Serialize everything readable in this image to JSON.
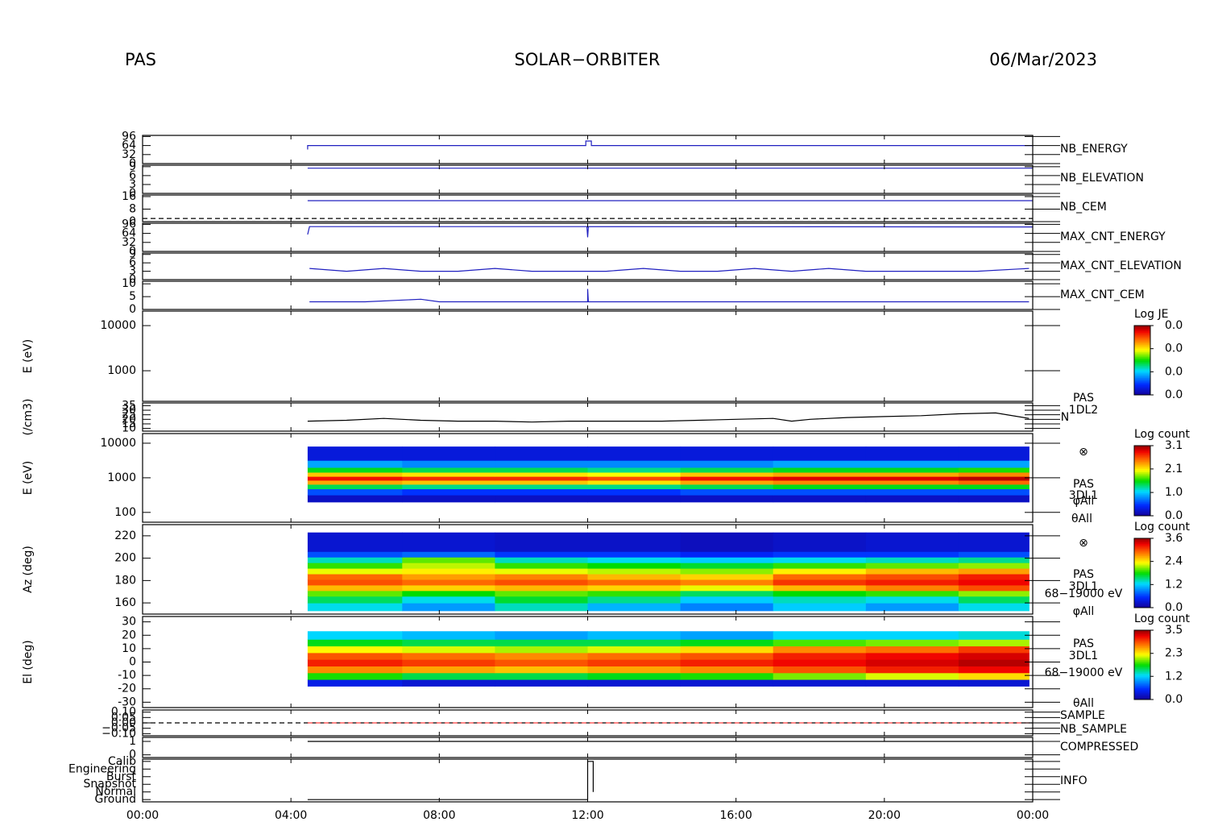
{
  "header": {
    "left": "PAS",
    "center": "SOLAR−ORBITER",
    "right": "06/Mar/2023"
  },
  "chart_data": [
    {
      "type": "line",
      "label": "NB_ENERGY",
      "label_color": "#2020b0",
      "ylim": [
        0,
        100
      ],
      "yticks": [
        0,
        32,
        64,
        96
      ],
      "series": [
        {
          "color": "#2020c0",
          "x": [
            4.45,
            4.45,
            11.95,
            11.95,
            12.1,
            12.1,
            24
          ],
          "values": [
            50,
            64,
            64,
            80,
            80,
            64,
            64
          ]
        }
      ]
    },
    {
      "type": "line",
      "label": "NB_ELEVATION",
      "label_color": "#2020b0",
      "ylim": [
        0,
        9.5
      ],
      "yticks": [
        0,
        3,
        6,
        9
      ],
      "series": [
        {
          "color": "#2020c0",
          "x": [
            4.45,
            24
          ],
          "values": [
            8.5,
            8.5
          ]
        }
      ]
    },
    {
      "type": "line",
      "label": "NB_CEM",
      "label_color": "#2020b0",
      "ylim": [
        0,
        17
      ],
      "yticks": [
        0,
        8,
        16
      ],
      "series": [
        {
          "color": "#2020c0",
          "x": [
            4.45,
            24
          ],
          "values": [
            13.4,
            13.4
          ]
        },
        {
          "color": "#000000",
          "dash": true,
          "x": [
            0,
            24
          ],
          "values": [
            2,
            2
          ]
        }
      ]
    },
    {
      "type": "line",
      "label": "MAX_CNT_ENERGY",
      "label_color": "#2020b0",
      "ylim": [
        0,
        100
      ],
      "yticks": [
        0,
        32,
        64,
        96
      ],
      "series": [
        {
          "color": "#2020c0",
          "x": [
            4.45,
            4.5,
            11.98,
            12,
            12.02,
            24
          ],
          "values": [
            60,
            88,
            88,
            50,
            88,
            87
          ]
        }
      ]
    },
    {
      "type": "line",
      "label": "MAX_CNT_ELEVATION",
      "label_color": "#2020b0",
      "ylim": [
        0,
        9.5
      ],
      "yticks": [
        0,
        3,
        6,
        9
      ],
      "series": [
        {
          "color": "#2020c0",
          "x": [
            4.5,
            5.5,
            6.5,
            7.5,
            8.5,
            9.5,
            10.5,
            11.5,
            12.5,
            13.5,
            14.5,
            15.5,
            16.5,
            17.5,
            18.5,
            19.5,
            20.5,
            21.5,
            22.5,
            23.9
          ],
          "values": [
            4,
            3,
            4,
            3,
            3,
            4,
            3,
            3,
            3,
            4,
            3,
            3,
            4,
            3,
            4,
            3,
            3,
            3,
            3,
            4
          ]
        }
      ]
    },
    {
      "type": "line",
      "label": "MAX_CNT_CEM",
      "label_color": "#2020b0",
      "ylim": [
        0,
        11
      ],
      "yticks": [
        0,
        5,
        10
      ],
      "series": [
        {
          "color": "#2020c0",
          "x": [
            4.5,
            6,
            7.5,
            8,
            9,
            12,
            12,
            12.02,
            16,
            20,
            23,
            23.9
          ],
          "values": [
            3,
            3,
            4,
            3,
            3,
            3,
            8,
            3,
            3,
            3,
            3,
            3
          ]
        }
      ]
    },
    {
      "type": "heatmap",
      "ylabel": "E (eV)",
      "log": true,
      "ylim": [
        210,
        21000
      ],
      "yticks": [
        1000,
        10000
      ],
      "colorbar": {
        "title": "Log JE",
        "zlim": [
          0,
          0.03
        ],
        "ticks": [
          {
            "value": 0,
            "label": "0.0"
          },
          {
            "value": 0.01,
            "label": "0.0"
          },
          {
            "value": 0.02,
            "label": "0.0"
          },
          {
            "value": 0.03,
            "label": "0.0"
          }
        ]
      }
    },
    {
      "type": "line",
      "ylabel": "(/cm3)",
      "ylim": [
        7,
        38
      ],
      "yticks": [
        10,
        15,
        20,
        25,
        30,
        35
      ],
      "side_labels": [
        "PAS",
        "1DL2",
        "N"
      ],
      "series": [
        {
          "color": "#000000",
          "x": [
            4.45,
            5.5,
            6.5,
            7.5,
            8.5,
            9.5,
            10.5,
            11.5,
            12.1,
            13,
            14,
            15,
            16,
            17,
            17.5,
            18,
            19,
            20,
            21,
            22,
            23,
            23.9
          ],
          "values": [
            18,
            19,
            21,
            19,
            18,
            18,
            17,
            18,
            18,
            18,
            18,
            19,
            20,
            21,
            18,
            20,
            22,
            23,
            24,
            26,
            27,
            21
          ]
        }
      ]
    },
    {
      "type": "heatmap",
      "ylabel": "E (eV)",
      "log": true,
      "ylim": [
        52,
        19000
      ],
      "yticks": [
        100,
        1000,
        10000
      ],
      "side_labels": [
        "⊗",
        "PAS",
        "3DL1",
        "φAll",
        "θAll"
      ],
      "x": [
        4.45,
        7,
        9.5,
        12,
        14.5,
        17,
        19.5,
        22,
        23.9
      ],
      "y": [
        200,
        320,
        480,
        650,
        850,
        1100,
        1450,
        2000,
        3200,
        8000
      ],
      "z": [
        [
          0.2,
          0.2,
          0.2,
          0.2,
          0.2,
          0.2,
          0.2,
          0.2
        ],
        [
          0.6,
          0.5,
          0.5,
          0.5,
          0.6,
          0.6,
          0.6,
          0.6
        ],
        [
          1.4,
          1.3,
          1.3,
          1.3,
          1.4,
          1.5,
          1.5,
          1.5
        ],
        [
          2.3,
          2.2,
          2.2,
          2.1,
          2.3,
          2.4,
          2.4,
          2.5
        ],
        [
          2.8,
          2.7,
          2.7,
          2.6,
          2.8,
          2.9,
          2.9,
          3.0
        ],
        [
          2.2,
          2.1,
          2.1,
          2.0,
          2.2,
          2.3,
          2.3,
          2.4
        ],
        [
          1.5,
          1.4,
          1.4,
          1.3,
          1.4,
          1.5,
          1.5,
          1.6
        ],
        [
          0.9,
          0.8,
          0.8,
          0.8,
          0.8,
          0.9,
          0.9,
          0.9
        ],
        [
          0.3,
          0.3,
          0.3,
          0.3,
          0.3,
          0.3,
          0.3,
          0.3
        ]
      ],
      "colorbar": {
        "title": "Log count",
        "zlim": [
          0,
          3.1
        ],
        "ticks": [
          {
            "value": 0,
            "label": "0.0"
          },
          {
            "value": 1.03,
            "label": "1.0"
          },
          {
            "value": 2.07,
            "label": "2.1"
          },
          3.1
        ]
      }
    },
    {
      "type": "heatmap",
      "ylabel": "Az (deg)",
      "ylim": [
        150,
        230
      ],
      "yticks": [
        160,
        180,
        200,
        220
      ],
      "side_labels": [
        "⊗",
        "PAS",
        "3DL1",
        "68−19000 eV",
        "φAll"
      ],
      "x": [
        4.45,
        7,
        9.5,
        12,
        14.5,
        17,
        19.5,
        22,
        23.9
      ],
      "y": [
        153,
        160,
        166,
        171,
        176,
        181,
        186,
        191,
        196,
        201,
        206,
        223
      ],
      "z": [
        [
          1.3,
          1.0,
          1.4,
          1.1,
          0.9,
          1.2,
          1.0,
          1.3
        ],
        [
          1.6,
          1.3,
          1.7,
          1.5,
          1.2,
          1.4,
          1.3,
          1.6
        ],
        [
          2.0,
          1.8,
          2.0,
          1.9,
          1.6,
          1.8,
          1.9,
          2.1
        ],
        [
          2.6,
          2.5,
          2.6,
          2.5,
          2.3,
          2.6,
          2.8,
          3.0
        ],
        [
          3.0,
          2.9,
          3.0,
          2.9,
          2.8,
          3.1,
          3.2,
          3.3
        ],
        [
          2.9,
          2.7,
          2.8,
          2.6,
          2.5,
          2.9,
          3.0,
          3.2
        ],
        [
          2.3,
          2.4,
          2.3,
          2.2,
          2.1,
          2.4,
          2.6,
          2.7
        ],
        [
          1.9,
          2.2,
          1.9,
          1.8,
          1.7,
          1.9,
          2.0,
          2.1
        ],
        [
          1.4,
          2.0,
          1.4,
          1.3,
          1.2,
          1.3,
          1.4,
          1.5
        ],
        [
          0.7,
          0.8,
          0.6,
          0.6,
          0.5,
          0.6,
          0.6,
          0.7
        ],
        [
          0.3,
          0.3,
          0.25,
          0.25,
          0.2,
          0.25,
          0.3,
          0.3
        ]
      ],
      "colorbar": {
        "title": "Log count",
        "zlim": [
          0,
          3.6
        ],
        "ticks": [
          {
            "value": 0,
            "label": "0.0"
          },
          1.2,
          2.4,
          3.6
        ]
      }
    },
    {
      "type": "heatmap",
      "ylabel": "El (deg)",
      "ylim": [
        -34,
        34
      ],
      "yticks": [
        -30,
        -20,
        -10,
        0,
        10,
        20,
        30
      ],
      "side_labels": [
        "PAS",
        "3DL1",
        "68−19000 eV",
        "θAll"
      ],
      "x": [
        4.45,
        7,
        9.5,
        12,
        14.5,
        17,
        19.5,
        22,
        23.9
      ],
      "y": [
        -18,
        -13,
        -8,
        -3,
        2,
        7,
        12,
        17,
        23
      ],
      "z": [
        [
          0.4,
          0.3,
          0.3,
          0.3,
          0.3,
          0.3,
          0.3,
          0.3
        ],
        [
          1.8,
          1.6,
          1.6,
          1.7,
          1.8,
          2.0,
          2.2,
          2.4
        ],
        [
          2.7,
          2.6,
          2.5,
          2.6,
          2.7,
          2.9,
          3.1,
          3.2
        ],
        [
          3.1,
          3.0,
          2.9,
          3.0,
          3.1,
          3.2,
          3.3,
          3.4
        ],
        [
          2.9,
          2.8,
          2.7,
          2.8,
          2.9,
          3.1,
          3.2,
          3.3
        ],
        [
          2.3,
          2.2,
          2.1,
          2.2,
          2.4,
          2.7,
          2.8,
          3.0
        ],
        [
          1.7,
          1.6,
          1.6,
          1.6,
          1.7,
          1.9,
          2.0,
          2.1
        ],
        [
          1.2,
          1.1,
          1.0,
          1.1,
          1.0,
          1.2,
          1.2,
          1.3
        ]
      ],
      "colorbar": {
        "title": "Log count",
        "zlim": [
          0,
          3.5
        ],
        "ticks": [
          {
            "value": 0,
            "label": "0.0"
          },
          {
            "value": 1.17,
            "label": "1.2"
          },
          {
            "value": 2.33,
            "label": "2.3"
          },
          3.5
        ]
      }
    },
    {
      "type": "line",
      "ylim": [
        -0.12,
        0.12
      ],
      "yticks": [
        {
          "value": -0.1,
          "label": "−0.10"
        },
        {
          "value": -0.05,
          "label": "−0.05"
        },
        {
          "value": 0,
          "label": "0.00"
        },
        {
          "value": 0.05,
          "label": "0.05"
        },
        {
          "value": 0.1,
          "label": "0.10"
        }
      ],
      "series": [
        {
          "name": "SAMPLE",
          "label_color": "#2020b0",
          "color": "#000000",
          "dash": true,
          "x": [
            0,
            24
          ],
          "values": [
            0,
            0
          ]
        },
        {
          "name": "NB_SAMPLE",
          "label_color": "#e02020",
          "color": "#ff4040",
          "dash": true,
          "x": [
            4.45,
            24
          ],
          "values": [
            0,
            0
          ]
        }
      ]
    },
    {
      "type": "line",
      "label": "COMPRESSED",
      "label_color": "#2020b0",
      "ylim": [
        -0.2,
        1.3
      ],
      "yticks": [
        0,
        1
      ],
      "series": [
        {
          "color": "#000000",
          "x": [
            4.45,
            24
          ],
          "values": [
            1,
            1
          ]
        }
      ]
    },
    {
      "type": "line",
      "label": "INFO",
      "label_color": "#2020b0",
      "ylim": [
        -0.3,
        5.3
      ],
      "yticks": [
        {
          "value": 0,
          "label": "Ground"
        },
        {
          "value": 1,
          "label": "Normal"
        },
        {
          "value": 2,
          "label": "Snapshot"
        },
        {
          "value": 3,
          "label": "Burst"
        },
        {
          "value": 4,
          "label": "Engineering"
        },
        {
          "value": 5,
          "label": "Calib"
        }
      ],
      "series": [
        {
          "color": "#000000",
          "x": [
            4.45,
            12,
            12,
            12.15,
            12.15
          ],
          "values": [
            0,
            0,
            5,
            5,
            1
          ]
        }
      ],
      "xlim": [
        0,
        24
      ],
      "xticks": [
        {
          "value": 0,
          "label": "00:00"
        },
        {
          "value": 4,
          "label": "04:00"
        },
        {
          "value": 8,
          "label": "08:00"
        },
        {
          "value": 12,
          "label": "12:00"
        },
        {
          "value": 16,
          "label": "16:00"
        },
        {
          "value": 20,
          "label": "20:00"
        },
        {
          "value": 24,
          "label": "00:00"
        }
      ]
    }
  ]
}
